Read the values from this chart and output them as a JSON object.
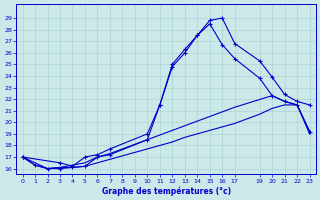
{
  "xlabel": "Graphe des températures (°c)",
  "bg_color": "#cce8e8",
  "grid_color": "#aad4d4",
  "line_color": "#0000cc",
  "ylim": [
    15.5,
    30.2
  ],
  "xlim": [
    -0.5,
    23.5
  ],
  "yticks": [
    16,
    17,
    18,
    19,
    20,
    21,
    22,
    23,
    24,
    25,
    26,
    27,
    28,
    29
  ],
  "xticks": [
    0,
    1,
    2,
    3,
    4,
    5,
    6,
    7,
    8,
    9,
    10,
    11,
    12,
    13,
    14,
    15,
    16,
    17,
    19,
    20,
    21,
    22,
    23
  ],
  "line1_x": [
    0,
    1,
    2,
    3,
    4,
    5,
    6,
    7,
    8,
    9,
    10,
    11,
    12,
    13,
    14,
    15,
    16,
    17,
    19,
    20,
    21,
    22,
    23
  ],
  "line1_y": [
    17.0,
    16.3,
    16.0,
    16.1,
    16.1,
    16.2,
    16.5,
    16.8,
    17.1,
    17.4,
    17.7,
    18.0,
    18.3,
    18.7,
    19.0,
    19.3,
    19.6,
    19.9,
    20.7,
    21.2,
    21.5,
    21.5,
    19.0
  ],
  "line2_x": [
    0,
    1,
    2,
    3,
    4,
    5,
    6,
    7,
    10,
    11,
    12,
    13,
    14,
    15,
    16,
    17,
    19,
    20,
    21,
    22,
    23
  ],
  "line2_y": [
    17.0,
    16.3,
    16.0,
    16.0,
    16.1,
    16.2,
    17.0,
    17.2,
    18.5,
    21.5,
    25.0,
    26.3,
    27.5,
    28.8,
    29.0,
    26.8,
    25.3,
    23.9,
    22.4,
    21.8,
    21.5
  ],
  "line3_x": [
    0,
    3,
    4,
    5,
    6,
    7,
    10,
    11,
    12,
    13,
    14,
    15,
    16,
    17,
    19,
    20,
    21,
    22,
    23
  ],
  "line3_y": [
    17.0,
    16.5,
    16.2,
    17.0,
    17.2,
    17.7,
    19.0,
    21.5,
    24.8,
    26.0,
    27.5,
    28.5,
    26.7,
    25.5,
    23.8,
    22.3,
    21.8,
    21.5,
    19.2
  ],
  "line4_x": [
    0,
    2,
    3,
    4,
    5,
    6,
    7,
    17,
    20,
    21,
    22,
    23
  ],
  "line4_y": [
    17.0,
    16.0,
    16.1,
    16.3,
    16.5,
    17.0,
    17.3,
    21.3,
    22.3,
    21.8,
    21.5,
    19.2
  ]
}
